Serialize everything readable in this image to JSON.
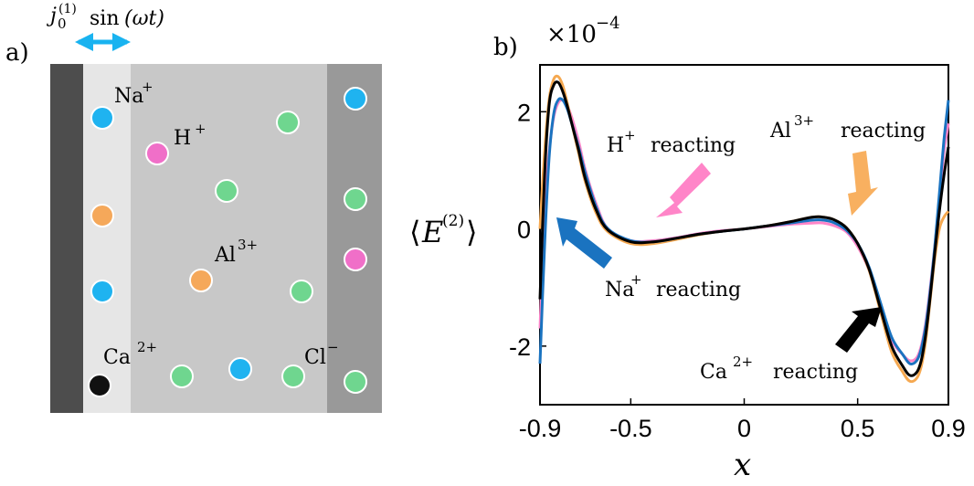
{
  "panel_a": {
    "label": "a)",
    "current_label": {
      "j": "j",
      "sub": "0",
      "sup": "(1)",
      "sin": "sin",
      "arg": "(ωt)"
    },
    "ions": [
      {
        "base": "Na",
        "charge": "+"
      },
      {
        "base": "H",
        "charge": "+"
      },
      {
        "base": "Al",
        "charge": "3+"
      },
      {
        "base": "Ca",
        "charge": "2+"
      },
      {
        "base": "Cl",
        "charge": "−"
      }
    ],
    "colors": {
      "electrode": "#4d4d4d",
      "reaction_layer": "#e6e6e6",
      "bulk": "#c8c8c8",
      "right_wall": "#999999",
      "Na": "#1fb3f0",
      "H": "#f06fc8",
      "Al": "#f5a85a",
      "Ca": "#111111",
      "Cl": "#6fd68f",
      "arrow": "#19b3f0"
    }
  },
  "panel_b": {
    "label": "b)",
    "multiplier": "×10",
    "multiplier_exp": "−4",
    "annotations": [
      {
        "ion": "H",
        "charge": "+",
        "text": "reacting",
        "color": "#ff85c8"
      },
      {
        "ion": "Al",
        "charge": "3+",
        "text": "reacting",
        "color": "#f8b060"
      },
      {
        "ion": "Na",
        "charge": "+",
        "text": "reacting",
        "color": "#1a73c0"
      },
      {
        "ion": "Ca",
        "charge": "2+",
        "text": "reacting",
        "color": "#000000"
      }
    ]
  },
  "chart_data": {
    "type": "line",
    "xlabel": "x",
    "ylabel": "⟨E(2)⟩",
    "xlim": [
      -0.9,
      0.9
    ],
    "ylim": [
      -3.0,
      2.8
    ],
    "y_scale_factor": "×10^-4",
    "grid": false,
    "x_ticks": [
      "-0.9",
      "-0.5",
      "0",
      "0.5",
      "0.9"
    ],
    "y_ticks": [
      "2",
      "0",
      "-2"
    ],
    "x": [
      -0.9,
      -0.88,
      -0.86,
      -0.84,
      -0.82,
      -0.8,
      -0.78,
      -0.76,
      -0.73,
      -0.7,
      -0.65,
      -0.6,
      -0.5,
      -0.4,
      -0.3,
      -0.2,
      -0.1,
      0.0,
      0.1,
      0.2,
      0.3,
      0.35,
      0.4,
      0.45,
      0.5,
      0.55,
      0.6,
      0.65,
      0.7,
      0.73,
      0.76,
      0.78,
      0.8,
      0.82,
      0.84,
      0.86,
      0.88,
      0.9
    ],
    "series": [
      {
        "name": "H+ reacting",
        "color": "#ff85c8",
        "values": [
          -1.7,
          0.3,
          1.3,
          1.9,
          2.15,
          2.2,
          2.1,
          1.9,
          1.5,
          1.0,
          0.4,
          0.0,
          -0.2,
          -0.2,
          -0.15,
          -0.08,
          -0.03,
          0.0,
          0.04,
          0.08,
          0.1,
          0.1,
          0.05,
          -0.05,
          -0.3,
          -0.7,
          -1.3,
          -1.9,
          -2.15,
          -2.25,
          -2.2,
          -2.0,
          -1.6,
          -1.0,
          -0.3,
          0.5,
          1.3,
          1.8
        ]
      },
      {
        "name": "Al3+ reacting",
        "color": "#f5a850",
        "values": [
          0.0,
          1.3,
          2.2,
          2.55,
          2.6,
          2.45,
          2.15,
          1.8,
          1.3,
          0.8,
          0.25,
          -0.05,
          -0.25,
          -0.25,
          -0.18,
          -0.1,
          -0.04,
          0.0,
          0.05,
          0.12,
          0.2,
          0.2,
          0.15,
          0.02,
          -0.25,
          -0.7,
          -1.4,
          -2.1,
          -2.45,
          -2.6,
          -2.55,
          -2.35,
          -1.9,
          -1.2,
          -0.5,
          0.0,
          0.2,
          0.3
        ]
      },
      {
        "name": "Na+ reacting",
        "color": "#1a73c0",
        "values": [
          -2.3,
          -0.3,
          1.2,
          1.95,
          2.2,
          2.2,
          2.05,
          1.8,
          1.4,
          0.95,
          0.35,
          0.0,
          -0.2,
          -0.22,
          -0.16,
          -0.09,
          -0.04,
          0.0,
          0.05,
          0.1,
          0.15,
          0.15,
          0.1,
          -0.02,
          -0.25,
          -0.65,
          -1.25,
          -1.85,
          -2.15,
          -2.3,
          -2.25,
          -2.05,
          -1.65,
          -1.05,
          -0.3,
          0.6,
          1.5,
          2.2
        ]
      },
      {
        "name": "Ca2+ reacting",
        "color": "#000000",
        "values": [
          -1.2,
          0.9,
          2.1,
          2.45,
          2.5,
          2.35,
          2.1,
          1.8,
          1.35,
          0.85,
          0.3,
          -0.02,
          -0.22,
          -0.22,
          -0.16,
          -0.09,
          -0.04,
          0.0,
          0.05,
          0.12,
          0.2,
          0.2,
          0.15,
          0.02,
          -0.25,
          -0.68,
          -1.35,
          -2.0,
          -2.35,
          -2.5,
          -2.45,
          -2.25,
          -1.8,
          -1.15,
          -0.4,
          0.3,
          0.9,
          1.4
        ]
      }
    ]
  }
}
